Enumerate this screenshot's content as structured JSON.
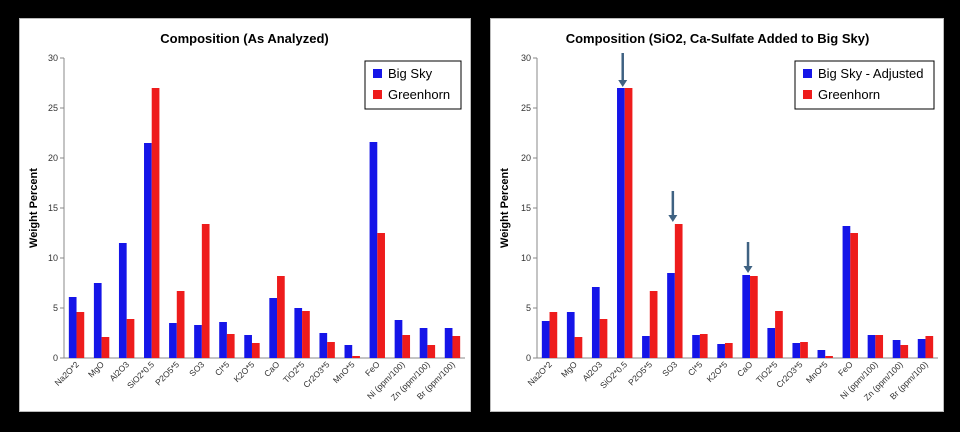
{
  "colors": {
    "blue": "#1515e8",
    "red": "#ee1c1c",
    "arrow": "#3f6282"
  },
  "chart_data": [
    {
      "type": "bar",
      "title": "Composition  (As Analyzed)",
      "ylabel": "Weight Percent",
      "xlabel": "",
      "ylim": [
        0,
        30
      ],
      "yticks": [
        "0",
        "5",
        "10",
        "15",
        "20",
        "25",
        "30"
      ],
      "categories": [
        "Na2O*2",
        "MgO",
        "Al2O3",
        "SiO2*0.5",
        "P2O5*5",
        "SO3",
        "Cl*5",
        "K2O*5",
        "CaO",
        "TiO2*5",
        "Cr2O3*5",
        "MnO*5",
        "FeO",
        "Ni (ppm/100)",
        "Zn (ppm/100)",
        "Br (ppm/100)"
      ],
      "series": [
        {
          "name": "Big Sky",
          "color": "#1515e8",
          "values": [
            6.1,
            7.5,
            11.5,
            21.5,
            3.5,
            3.3,
            3.6,
            2.3,
            6.0,
            5.0,
            2.5,
            1.3,
            21.6,
            3.8,
            3.0,
            3.0
          ]
        },
        {
          "name": "Greenhorn",
          "color": "#ee1c1c",
          "values": [
            4.6,
            2.1,
            3.9,
            27.0,
            6.7,
            13.4,
            2.4,
            1.5,
            8.2,
            4.7,
            1.6,
            0.2,
            12.5,
            2.3,
            1.3,
            2.2
          ]
        }
      ],
      "legend": "top-right",
      "grid": false
    },
    {
      "type": "bar",
      "title": "Composition  (SiO2, Ca-Sulfate Added to Big Sky)",
      "ylabel": "Weight Percent",
      "xlabel": "",
      "ylim": [
        0,
        30
      ],
      "yticks": [
        "0",
        "5",
        "10",
        "15",
        "20",
        "25",
        "30"
      ],
      "categories": [
        "Na2O*2",
        "MgO",
        "Al2O3",
        "SiO2*0.5",
        "P2O5*5",
        "SO3",
        "Cl*5",
        "K2O*5",
        "CaO",
        "TiO2*5",
        "Cr2O3*5",
        "MnO*5",
        "FeO",
        "Ni (ppm/100)",
        "Zn (ppm/100)",
        "Br (ppm/100)"
      ],
      "series": [
        {
          "name": "Big Sky - Adjusted",
          "color": "#1515e8",
          "values": [
            3.7,
            4.6,
            7.1,
            27.0,
            2.2,
            8.5,
            2.3,
            1.4,
            8.3,
            3.0,
            1.5,
            0.8,
            13.2,
            2.3,
            1.8,
            1.9
          ]
        },
        {
          "name": "Greenhorn",
          "color": "#ee1c1c",
          "values": [
            4.6,
            2.1,
            3.9,
            27.0,
            6.7,
            13.4,
            2.4,
            1.5,
            8.2,
            4.7,
            1.6,
            0.2,
            12.5,
            2.3,
            1.3,
            2.2
          ]
        }
      ],
      "arrows": [
        {
          "category": "SiO2*0.5",
          "y_from": 30.5,
          "y_to": 27.1
        },
        {
          "category": "SO3",
          "y_from": 16.7,
          "y_to": 13.6
        },
        {
          "category": "CaO",
          "y_from": 11.6,
          "y_to": 8.5
        }
      ],
      "legend": "top-right",
      "grid": false
    }
  ]
}
